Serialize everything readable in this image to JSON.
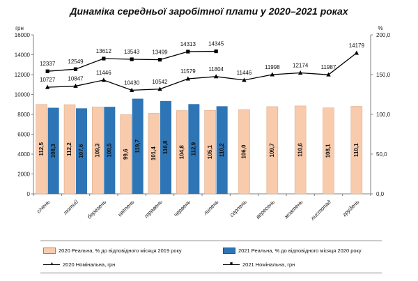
{
  "title": "Динаміка середньої заробітної плати у 2020–2021 роках",
  "chart_data": {
    "type": "bar",
    "categories": [
      "січень",
      "лютий",
      "березень",
      "квітень",
      "травень",
      "червень",
      "липень",
      "серпень",
      "вересень",
      "жовтень",
      "листопад",
      "грудень"
    ],
    "y_left": {
      "unit": "грн",
      "range": [
        0,
        16000
      ],
      "ticks": [
        "0",
        "2000",
        "4000",
        "6000",
        "8000",
        "10000",
        "12000",
        "14000",
        "16000"
      ]
    },
    "y_right": {
      "unit": "%",
      "range": [
        0,
        200
      ],
      "ticks": [
        "0,0",
        "50,0",
        "100,0",
        "150,0",
        "200,0"
      ]
    },
    "grid": false,
    "legend_position": "bottom",
    "series": [
      {
        "name": "2020 Реальна, % до відповідного місяця 2019 року",
        "kind": "bar",
        "axis": "right",
        "color": "#f8cbad",
        "values": [
          112.5,
          112.2,
          109.3,
          99.6,
          101.4,
          104.8,
          105.1,
          106.0,
          109.7,
          110.6,
          108.1,
          110.1
        ],
        "labels": [
          "112,5",
          "112,2",
          "109,3",
          "99,6",
          "101,4",
          "104,8",
          "105,1",
          "106,0",
          "109,7",
          "110,6",
          "108,1",
          "110,1"
        ]
      },
      {
        "name": "2021 Реальна, % до відповідного місяця 2020 року",
        "kind": "bar",
        "axis": "right",
        "color": "#2e75b6",
        "values": [
          108.3,
          107.6,
          109.5,
          119.7,
          116.8,
          112.9,
          110.2,
          null,
          null,
          null,
          null,
          null
        ],
        "labels": [
          "108,3",
          "107,6",
          "109,5",
          "119,7",
          "116,8",
          "112,9",
          "110,2",
          null,
          null,
          null,
          null,
          null
        ]
      },
      {
        "name": "2020 Номінальна, грн",
        "kind": "line",
        "marker": "triangle",
        "axis": "left",
        "color": "#000000",
        "values": [
          10727,
          10847,
          11446,
          10430,
          10542,
          11579,
          11804,
          11446,
          11998,
          12174,
          11987,
          14179
        ],
        "labels": [
          "10727",
          "10847",
          "11446",
          "10430",
          "10542",
          "11579",
          "11804",
          "11446",
          "11998",
          "12174",
          "11987",
          "14179"
        ]
      },
      {
        "name": "2021 Номінальна, грн",
        "kind": "line",
        "marker": "square",
        "axis": "left",
        "color": "#000000",
        "values": [
          12337,
          12549,
          13612,
          13543,
          13499,
          14313,
          14345,
          null,
          null,
          null,
          null,
          null
        ],
        "labels": [
          "12337",
          "12549",
          "13612",
          "13543",
          "13499",
          "14313",
          "14345",
          null,
          null,
          null,
          null,
          null
        ]
      }
    ]
  }
}
